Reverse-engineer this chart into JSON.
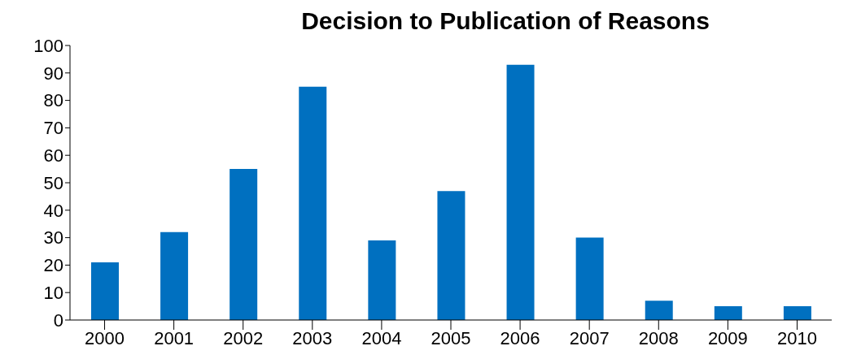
{
  "chart_data": {
    "type": "bar",
    "title": "Decision to Publication of Reasons",
    "categories": [
      "2000",
      "2001",
      "2002",
      "2003",
      "2004",
      "2005",
      "2006",
      "2007",
      "2008",
      "2009",
      "2010"
    ],
    "values": [
      21,
      32,
      55,
      85,
      29,
      47,
      93,
      30,
      7,
      5,
      5
    ],
    "color": "#0070c0",
    "ylim": [
      0,
      100
    ],
    "yticks": [
      0,
      10,
      20,
      30,
      40,
      50,
      60,
      70,
      80,
      90,
      100
    ],
    "grid": false
  }
}
